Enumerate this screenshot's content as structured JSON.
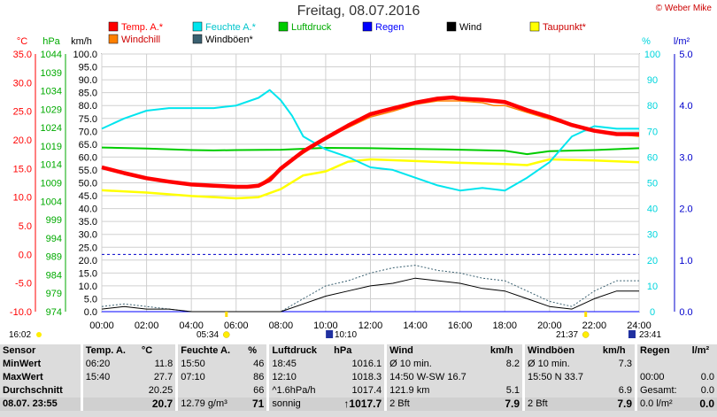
{
  "header": {
    "title": "Freitag, 08.07.2016",
    "copyright": "© Weber Mike"
  },
  "colors": {
    "temp": "#ff0000",
    "humidity": "#00e5ee",
    "pressure": "#00cc00",
    "rain": "#0000ff",
    "wind": "#000000",
    "dewpoint": "#ffff00",
    "windchill": "#ff8000",
    "gusts": "#3a6070"
  },
  "chart_data": {
    "type": "line",
    "title": "Freitag, 08.07.2016",
    "axes": {
      "temp": {
        "unit": "°C",
        "range": [
          -10,
          35
        ],
        "ticks": [
          "35.0",
          "30.0",
          "25.0",
          "20.0",
          "15.0",
          "10.0",
          "5.0",
          "0.0",
          "-5.0",
          "-10.0"
        ]
      },
      "pressure": {
        "unit": "hPa",
        "range": [
          974,
          1044
        ],
        "ticks": [
          "1044",
          "1039",
          "1034",
          "1029",
          "1024",
          "1019",
          "1014",
          "1009",
          "1004",
          "999",
          "994",
          "989",
          "984",
          "979",
          "974"
        ]
      },
      "wind": {
        "unit": "km/h",
        "range": [
          0,
          100
        ],
        "ticks": [
          "100.0",
          "95.0",
          "90.0",
          "85.0",
          "80.0",
          "75.0",
          "70.0",
          "65.0",
          "60.0",
          "55.0",
          "50.0",
          "45.0",
          "40.0",
          "35.0",
          "30.0",
          "25.0",
          "20.0",
          "15.0",
          "10.0",
          "5.0",
          "0.0"
        ]
      },
      "humidity": {
        "unit": "%",
        "range": [
          0,
          100
        ],
        "ticks": [
          "100",
          "90",
          "80",
          "70",
          "60",
          "50",
          "40",
          "30",
          "20",
          "10",
          "0"
        ]
      },
      "rain": {
        "unit": "l/m²",
        "range": [
          0,
          5
        ],
        "ticks": [
          "5.0",
          "4.0",
          "3.0",
          "2.0",
          "1.0",
          "0.0"
        ]
      },
      "x": {
        "range_hours": [
          0,
          24
        ],
        "ticks": [
          "00:00",
          "02:00",
          "04:00",
          "06:00",
          "08:00",
          "10:00",
          "12:00",
          "14:00",
          "16:00",
          "18:00",
          "20:00",
          "22:00",
          "24:00"
        ]
      }
    },
    "legend": [
      {
        "name": "Temp. A.*",
        "color": "#ff0000"
      },
      {
        "name": "Feuchte A.*",
        "color": "#00e5ee"
      },
      {
        "name": "Luftdruck",
        "color": "#00cc00"
      },
      {
        "name": "Regen",
        "color": "#0000ff"
      },
      {
        "name": "Wind",
        "color": "#000000"
      },
      {
        "name": "Taupunkt*",
        "color": "#ffff00"
      },
      {
        "name": "Windchill",
        "color": "#ff8000"
      },
      {
        "name": "Windböen*",
        "color": "#3a6070"
      }
    ],
    "series": [
      {
        "name": "Temp. A.*",
        "axis": "temp",
        "x": [
          0,
          1,
          2,
          3,
          4,
          5,
          6,
          6.5,
          7,
          7.5,
          8,
          9,
          10,
          11,
          12,
          13,
          14,
          15,
          15.67,
          16,
          17,
          18,
          19,
          20,
          21,
          22,
          23,
          24
        ],
        "y": [
          15.2,
          14.2,
          13.3,
          12.7,
          12.2,
          12.0,
          11.8,
          11.8,
          12.0,
          13.0,
          15.0,
          18.0,
          20.3,
          22.5,
          24.5,
          25.5,
          26.5,
          27.2,
          27.4,
          27.2,
          27.0,
          26.6,
          25.2,
          24.0,
          22.6,
          21.6,
          21.0,
          21.0
        ]
      },
      {
        "name": "Feuchte A.*",
        "axis": "humidity",
        "x": [
          0,
          1,
          2,
          3,
          4,
          5,
          6,
          7,
          7.5,
          8,
          8.5,
          9,
          10,
          11,
          12,
          13,
          14,
          15,
          16,
          17,
          18,
          19,
          20,
          21,
          22,
          23,
          24
        ],
        "y": [
          71,
          75,
          78,
          79,
          79,
          79,
          80,
          83,
          86,
          82,
          76,
          68,
          63,
          60,
          56,
          55,
          52,
          49,
          47,
          48,
          47,
          52,
          58,
          68,
          72,
          71,
          71
        ]
      },
      {
        "name": "Luftdruck",
        "axis": "pressure",
        "x": [
          0,
          2,
          4,
          5,
          6,
          8,
          10,
          12,
          14,
          16,
          18,
          19,
          20,
          22,
          24
        ],
        "y": [
          1018.6,
          1018.3,
          1017.9,
          1017.8,
          1017.9,
          1018.0,
          1018.5,
          1018.4,
          1018.2,
          1018.0,
          1017.7,
          1016.8,
          1017.6,
          1017.9,
          1018.4
        ]
      },
      {
        "name": "Windchill",
        "axis": "temp",
        "x": [
          0,
          2,
          4,
          6,
          7,
          8,
          10,
          12,
          13,
          14,
          15,
          16,
          17,
          17.5,
          18,
          19,
          20,
          22,
          24
        ],
        "y": [
          15.2,
          13.3,
          12.2,
          11.8,
          12.0,
          15.0,
          20.3,
          24.0,
          25.0,
          26.2,
          26.8,
          26.8,
          26.5,
          26.0,
          26.0,
          24.8,
          23.6,
          21.4,
          20.6
        ]
      },
      {
        "name": "Taupunkt*",
        "axis": "temp",
        "x": [
          0,
          2,
          4,
          6,
          7,
          8,
          9,
          10,
          11,
          12,
          14,
          16,
          18,
          19,
          20,
          22,
          24
        ],
        "y": [
          11.2,
          10.8,
          10.2,
          9.8,
          10.0,
          11.4,
          13.8,
          14.5,
          16.2,
          16.6,
          16.3,
          16.0,
          15.8,
          15.6,
          16.6,
          16.4,
          16.1
        ]
      },
      {
        "name": "Wind",
        "axis": "wind",
        "x": [
          0,
          1,
          2,
          3,
          4,
          5,
          6,
          7,
          8,
          9,
          10,
          11,
          12,
          13,
          14,
          15,
          16,
          17,
          18,
          19,
          20,
          21,
          22,
          23,
          24
        ],
        "y": [
          1,
          2,
          1,
          1,
          0,
          0,
          0,
          0,
          0,
          3,
          6,
          8,
          10,
          11,
          13,
          12,
          11,
          9,
          8,
          5,
          2,
          1,
          5,
          8,
          8
        ]
      },
      {
        "name": "Windböen*",
        "axis": "wind",
        "x": [
          0,
          1,
          2,
          3,
          4,
          5,
          6,
          7,
          8,
          9,
          10,
          11,
          12,
          13,
          14,
          15,
          16,
          17,
          18,
          19,
          20,
          21,
          22,
          23,
          24
        ],
        "y": [
          2,
          3,
          2,
          1,
          0,
          0,
          0,
          0,
          0,
          5,
          10,
          12,
          15,
          17,
          18,
          16,
          15,
          13,
          12,
          8,
          4,
          2,
          8,
          12,
          12
        ]
      },
      {
        "name": "Regen",
        "axis": "rain",
        "x": [
          0,
          24
        ],
        "y": [
          0,
          0
        ]
      }
    ],
    "reference_line": {
      "axis": "temp",
      "value": 0.0
    },
    "sun_markers": {
      "sunrise": "05:34",
      "sunset": "21:37",
      "moonrise": "10:10",
      "moonset": "23:41"
    }
  },
  "time_notes": {
    "left": "16:02",
    "sunrise": "05:34",
    "moonrise": "10:10",
    "sunset": "21:37",
    "moonset": "23:41"
  },
  "table": {
    "headers": [
      "Sensor",
      "Temp. A.",
      "°C",
      "Feuchte A.",
      "%",
      "Luftdruck",
      "hPa",
      "Wind",
      "km/h",
      "Windböen",
      "km/h",
      "Regen",
      "l/m²"
    ],
    "rows": [
      [
        "MinWert",
        "06:20",
        "11.8",
        "15:50",
        "46",
        "18:45",
        "1016.1",
        "Ø 10 min.",
        "8.2",
        "Ø 10 min.",
        "7.3",
        "",
        ""
      ],
      [
        "MaxWert",
        "15:40",
        "27.7",
        "07:10",
        "86",
        "12:10",
        "1018.3",
        "14:50   W-SW 16.7",
        "",
        "15:50   N 33.7",
        "",
        "00:00",
        "0.0"
      ],
      [
        "Durchschnitt",
        "",
        "20.25",
        "",
        "66",
        "^1.6hPa/h",
        "1017.4",
        "121.9 km",
        "5.1",
        "",
        "6.9",
        "Gesamt:",
        "0.0"
      ],
      [
        "08.07.  23:55",
        "",
        "20.7",
        "12.79 g/m³",
        "71",
        "sonnig",
        "↑1017.7",
        "2 Bft",
        "7.9",
        "2 Bft",
        "7.9",
        "0.0 l/m²",
        "0.0"
      ]
    ]
  }
}
